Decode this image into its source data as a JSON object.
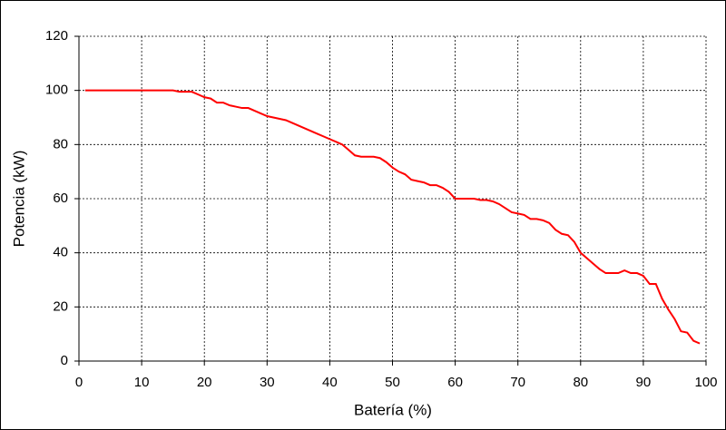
{
  "chart_data": {
    "type": "line",
    "x_label": "Batería (%)",
    "y_label": "Potencia (kW)",
    "x": [
      1,
      15,
      16,
      18,
      19,
      20,
      21,
      22,
      23,
      24,
      25,
      26,
      27,
      28,
      29,
      30,
      31,
      32,
      33,
      34,
      35,
      36,
      37,
      38,
      39,
      40,
      41,
      42,
      43,
      44,
      45,
      46,
      47,
      48,
      49,
      50,
      51,
      52,
      53,
      54,
      55,
      56,
      57,
      58,
      59,
      60,
      61,
      62,
      63,
      64,
      65,
      66,
      67,
      68,
      69,
      70,
      71,
      72,
      73,
      74,
      75,
      76,
      77,
      78,
      79,
      80,
      81,
      82,
      83,
      84,
      85,
      86,
      87,
      88,
      89,
      90,
      91,
      92,
      93,
      94,
      95,
      96,
      97,
      98,
      99
    ],
    "series": [
      {
        "color": "#ff0000",
        "values": [
          100,
          100,
          99.5,
          99.5,
          98.5,
          97.5,
          97,
          95.5,
          95.5,
          94.5,
          94,
          93.5,
          93.5,
          92.5,
          91.5,
          90.5,
          90,
          89.5,
          89,
          88,
          87,
          86,
          85,
          84,
          83,
          82,
          81,
          80,
          78,
          76,
          75.5,
          75.5,
          75.5,
          75,
          73.5,
          71.5,
          70,
          69,
          67,
          66.5,
          66,
          65,
          65,
          64,
          62.5,
          60,
          60,
          60,
          60,
          59.5,
          59.5,
          59,
          58,
          56.5,
          55,
          54.5,
          54,
          52.5,
          52.5,
          52,
          51,
          48.5,
          47,
          46.5,
          44,
          40,
          38,
          36,
          34,
          32.5,
          32.5,
          32.5,
          33.5,
          32.5,
          32.5,
          31.5,
          28.5,
          28.5,
          23,
          19,
          15.5,
          11,
          10.5,
          7.5,
          6.5
        ]
      }
    ],
    "xlim": [
      0,
      100
    ],
    "xticks": [
      0,
      10,
      20,
      30,
      40,
      50,
      60,
      70,
      80,
      90,
      100
    ],
    "ylim": [
      0,
      120
    ],
    "yticks": [
      0,
      20,
      40,
      60,
      80,
      100,
      120
    ],
    "grid": true
  }
}
